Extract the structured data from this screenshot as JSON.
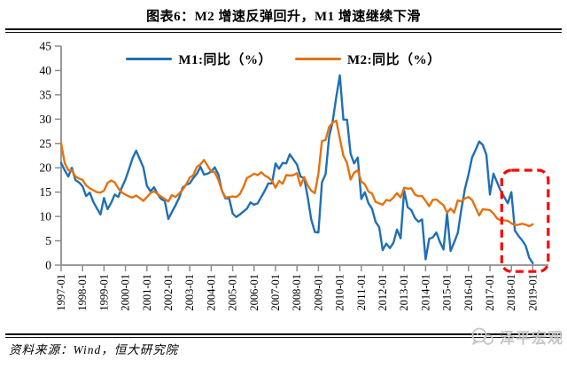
{
  "title": "图表6：M2 增速反弹回升，M1 增速继续下滑",
  "source_note": "资料来源：Wind，恒大研究院",
  "watermark_text": "泽平宏观",
  "legend": [
    {
      "label": "M1:同比（%）",
      "color": "#1F6FB5"
    },
    {
      "label": "M2:同比（%）",
      "color": "#E5720D"
    }
  ],
  "chart_data": {
    "type": "line",
    "title": "图表6：M2 增速反弹回升，M1 增速继续下滑",
    "xlabel": "",
    "ylabel": "",
    "ylim": [
      0,
      45
    ],
    "y_tick_step": 5,
    "grid": false,
    "legend_position": "top",
    "axis_color": "#8C8C8C",
    "x_start_year": 1997,
    "points_per_year": 6,
    "x_tick_labels": [
      "1997-01",
      "1998-01",
      "1999-01",
      "2000-01",
      "2001-01",
      "2002-01",
      "2003-01",
      "2004-01",
      "2005-01",
      "2006-01",
      "2007-01",
      "2008-01",
      "2009-01",
      "2010-01",
      "2011-01",
      "2012-01",
      "2013-01",
      "2014-01",
      "2015-01",
      "2016-01",
      "2017-01",
      "2018-01",
      "2019-01"
    ],
    "series": [
      {
        "name": "M1:同比（%）",
        "color": "#1F6FB5",
        "values": [
          21.0,
          19.5,
          18.2,
          20.0,
          17.5,
          17.0,
          16.2,
          14.2,
          14.9,
          13.0,
          11.7,
          10.4,
          13.8,
          11.5,
          12.8,
          14.5,
          14.0,
          16.0,
          17.6,
          19.7,
          22.0,
          23.5,
          21.8,
          20.1,
          16.3,
          15.2,
          16.0,
          14.6,
          13.6,
          13.2,
          9.5,
          10.9,
          12.3,
          13.8,
          15.9,
          16.5,
          16.8,
          17.9,
          18.8,
          20.2,
          18.6,
          18.8,
          19.2,
          20.1,
          18.6,
          15.3,
          13.7,
          13.8,
          10.6,
          9.9,
          10.4,
          11.0,
          11.6,
          12.9,
          12.4,
          12.7,
          14.0,
          15.3,
          16.8,
          16.8,
          20.9,
          19.8,
          21.0,
          20.9,
          22.8,
          21.7,
          20.7,
          18.2,
          17.9,
          14.0,
          9.4,
          6.8,
          6.7,
          17.0,
          18.7,
          26.4,
          29.5,
          34.6,
          39.0,
          29.9,
          29.9,
          22.9,
          20.9,
          22.1,
          13.6,
          15.0,
          12.7,
          11.6,
          8.9,
          7.8,
          3.1,
          4.4,
          3.5,
          4.6,
          7.3,
          5.5,
          15.3,
          11.9,
          11.3,
          9.7,
          8.9,
          9.4,
          1.2,
          5.4,
          5.7,
          6.7,
          4.8,
          3.2,
          10.6,
          2.9,
          4.7,
          6.6,
          11.4,
          15.7,
          18.6,
          22.1,
          23.7,
          25.4,
          24.7,
          22.7,
          14.5,
          18.8,
          17.0,
          15.3,
          14.0,
          12.7,
          15.0,
          7.1,
          6.0,
          5.1,
          4.0,
          1.5,
          0.4
        ]
      },
      {
        "name": "M2:同比（%）",
        "color": "#E5720D",
        "values": [
          25.0,
          21.0,
          19.5,
          19.5,
          18.2,
          17.8,
          17.5,
          16.4,
          15.8,
          15.4,
          15.0,
          14.9,
          15.3,
          16.9,
          17.4,
          17.0,
          15.8,
          14.9,
          14.5,
          14.1,
          13.9,
          14.3,
          13.8,
          13.2,
          14.0,
          14.8,
          15.2,
          14.6,
          14.1,
          13.6,
          13.1,
          14.4,
          14.0,
          14.7,
          15.5,
          16.6,
          18.0,
          18.5,
          20.2,
          20.7,
          21.6,
          20.4,
          19.2,
          19.1,
          17.5,
          15.3,
          13.9,
          14.0,
          14.1,
          14.0,
          14.6,
          16.0,
          17.9,
          18.3,
          18.8,
          18.5,
          19.1,
          18.4,
          18.0,
          17.3,
          15.9,
          17.3,
          16.7,
          18.5,
          18.4,
          18.5,
          18.9,
          16.3,
          18.1,
          16.4,
          15.3,
          14.8,
          18.8,
          25.5,
          25.7,
          28.4,
          29.3,
          29.7,
          26.0,
          22.5,
          21.0,
          17.6,
          19.0,
          19.5,
          17.2,
          16.6,
          15.1,
          14.7,
          13.0,
          12.7,
          12.4,
          13.4,
          13.2,
          13.9,
          14.8,
          13.9,
          15.9,
          15.7,
          15.8,
          14.5,
          14.2,
          14.2,
          13.2,
          12.1,
          13.4,
          13.5,
          12.9,
          12.3,
          10.8,
          11.6,
          10.8,
          13.3,
          13.1,
          13.7,
          14.0,
          13.4,
          11.8,
          10.2,
          11.5,
          11.4,
          11.3,
          10.6,
          9.6,
          9.2,
          9.2,
          9.1,
          8.6,
          8.2,
          8.3,
          8.5,
          8.3,
          8.0,
          8.4
        ]
      }
    ],
    "annotation": {
      "type": "dashed-box",
      "color": "#FF0000",
      "x_from_year": 2017.55,
      "x_to_year": 2019.72,
      "y_from_value": -1.3,
      "y_to_value": 19.5
    }
  }
}
